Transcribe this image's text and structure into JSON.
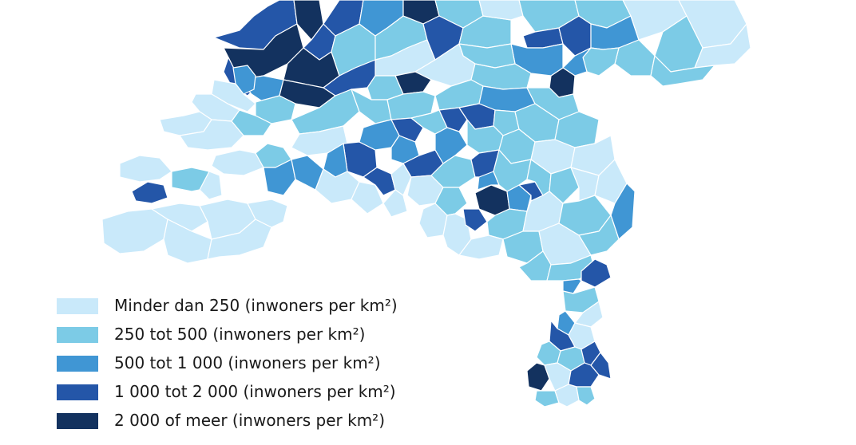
{
  "colors": {
    "c1": "#c9e9fa",
    "c2": "#7ccbe6",
    "c3": "#4096d4",
    "c4": "#2456a8",
    "c5": "#13325f"
  },
  "legend": {
    "items": [
      {
        "label": "Minder dan 250 (inwoners per km²)",
        "color": "#c9e9fa"
      },
      {
        "label": "250 tot 500 (inwoners per km²)",
        "color": "#7ccbe6"
      },
      {
        "label": "500 tot 1 000 (inwoners per km²)",
        "color": "#4096d4"
      },
      {
        "label": "1 000 tot 2 000 (inwoners per km²)",
        "color": "#2456a8"
      },
      {
        "label": "2 000 of meer (inwoners per km²)",
        "color": "#13325f"
      }
    ]
  }
}
